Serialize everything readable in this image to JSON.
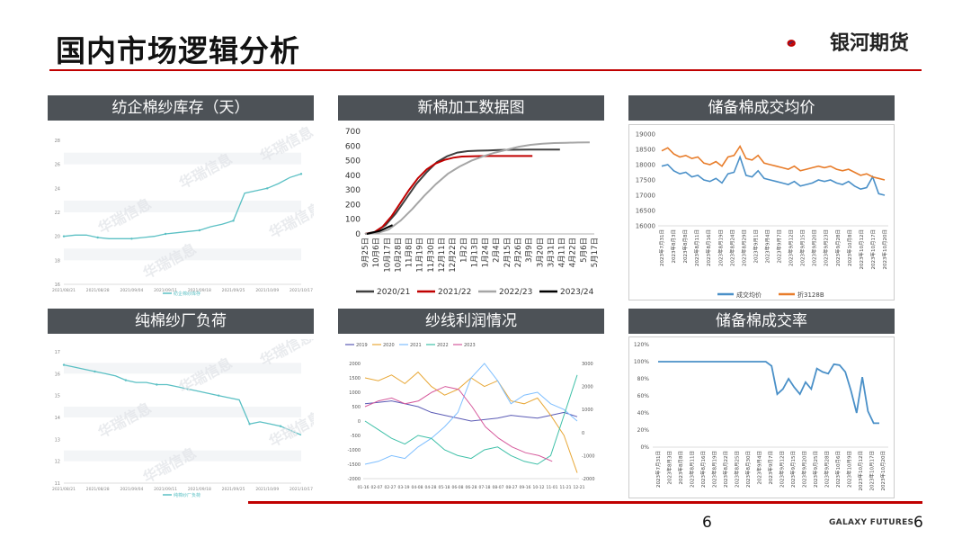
{
  "page": {
    "title": "国内市场逻辑分析",
    "page_number": "6",
    "page_number_right": "6",
    "footer_brand": "GALAXY FUTURES"
  },
  "logo": {
    "text": "银河期货"
  },
  "panels": {
    "yarn_inventory": {
      "title": "纺企棉纱库存（天）",
      "watermark": "华瑞信息"
    },
    "new_cotton": {
      "title": "新棉加工数据图"
    },
    "reserve_price": {
      "title": "储备棉成交均价"
    },
    "yarn_load": {
      "title": "纯棉纱厂负荷",
      "watermark": "华瑞信息"
    },
    "yarn_profit": {
      "title": "纱线利润情况"
    },
    "reserve_rate": {
      "title": "储备棉成交率"
    }
  },
  "chart_data": [
    {
      "id": "yarn_inventory",
      "type": "line",
      "title": "纺企棉纱库存（天）",
      "x_ticks": [
        "2021/08/21",
        "2021/08/28",
        "2021/09/04",
        "2021/09/11",
        "2021/09/18",
        "2021/09/25",
        "2021/10/09",
        "2021/10/17"
      ],
      "y_ticks": [
        16,
        18,
        20,
        22,
        24,
        26,
        28
      ],
      "ylim": [
        16,
        28
      ],
      "legend": [
        "纺企棉纱库存"
      ],
      "series": [
        {
          "name": "纺企棉纱库存",
          "color": "#5bc0c4",
          "values": [
            20.0,
            20.1,
            20.1,
            19.9,
            19.8,
            19.8,
            19.8,
            19.9,
            20.0,
            20.2,
            20.3,
            20.4,
            20.5,
            20.8,
            21.0,
            21.3,
            23.6,
            23.8,
            24.0,
            24.4,
            24.9,
            25.2
          ]
        }
      ]
    },
    {
      "id": "new_cotton",
      "type": "line",
      "title": "新棉加工数据图",
      "x_ticks": [
        "9月25日",
        "10月6日",
        "10月17日",
        "10月28日",
        "11月8日",
        "11月19日",
        "11月30日",
        "12月11日",
        "12月22日",
        "1月2日",
        "1月13日",
        "1月24日",
        "2月4日",
        "2月15日",
        "2月26日",
        "3月9日",
        "3月20日",
        "3月31日",
        "4月11日",
        "4月22日",
        "5月6日",
        "5月17日"
      ],
      "y_ticks": [
        0,
        100,
        200,
        300,
        400,
        500,
        600,
        700
      ],
      "ylim": [
        0,
        700
      ],
      "series": [
        {
          "name": "2020/21",
          "color": "#404040",
          "values": [
            0,
            15,
            60,
            140,
            240,
            340,
            420,
            490,
            530,
            555,
            565,
            568,
            570,
            572,
            574,
            575,
            576,
            576,
            576,
            576
          ]
        },
        {
          "name": "2021/22",
          "color": "#c00000",
          "values": [
            0,
            10,
            50,
            120,
            210,
            300,
            380,
            440,
            480,
            505,
            520,
            528,
            530,
            531,
            532,
            532,
            532,
            532,
            532,
            532
          ]
        },
        {
          "name": "2022/23",
          "color": "#a6a6a6",
          "values": [
            0,
            5,
            30,
            90,
            170,
            260,
            340,
            410,
            460,
            500,
            530,
            555,
            575,
            595,
            608,
            615,
            620,
            622,
            624,
            625
          ]
        },
        {
          "name": "2023/24",
          "color": "#000000",
          "values": [
            0,
            20,
            60
          ]
        }
      ]
    },
    {
      "id": "reserve_price",
      "type": "line",
      "title": "储备棉成交均价",
      "x_ticks": [
        "2023年7月31日",
        "2023年8月3日",
        "2023年8月8日",
        "2023年8月11日",
        "2023年8月16日",
        "2023年8月19日",
        "2023年8月24日",
        "2023年8月29日",
        "2023年9月1日",
        "2023年9月4日",
        "2023年9月7日",
        "2023年9月12日",
        "2023年9月15日",
        "2023年9月20日",
        "2023年9月23日",
        "2023年9月28日",
        "2023年10月8日",
        "2023年10月12日",
        "2023年10月17日",
        "2023年10月20日"
      ],
      "y_ticks": [
        16000,
        16500,
        17000,
        17500,
        18000,
        18500,
        19000
      ],
      "ylim": [
        16000,
        19000
      ],
      "legend": [
        "成交均价",
        "折3128B"
      ],
      "series": [
        {
          "name": "成交均价",
          "color": "#4a90c8",
          "values": [
            17950,
            18000,
            17800,
            17700,
            17750,
            17600,
            17650,
            17500,
            17450,
            17550,
            17400,
            17700,
            17750,
            18250,
            17650,
            17600,
            17800,
            17550,
            17500,
            17450,
            17400,
            17350,
            17450,
            17300,
            17350,
            17400,
            17500,
            17450,
            17500,
            17400,
            17350,
            17450,
            17300,
            17200,
            17250,
            17600,
            17050,
            17000
          ]
        },
        {
          "name": "折3128B",
          "color": "#e87d2b",
          "values": [
            18450,
            18550,
            18350,
            18250,
            18300,
            18200,
            18250,
            18050,
            18000,
            18100,
            17950,
            18250,
            18300,
            18600,
            18200,
            18150,
            18300,
            18050,
            18000,
            17950,
            17900,
            17850,
            17950,
            17800,
            17850,
            17900,
            17950,
            17900,
            17950,
            17850,
            17800,
            17850,
            17750,
            17650,
            17700,
            17600,
            17550,
            17500
          ]
        }
      ]
    },
    {
      "id": "yarn_load",
      "type": "line",
      "title": "纯棉纱厂负荷",
      "x_ticks": [
        "2021/08/21",
        "2021/08/28",
        "2021/09/04",
        "2021/09/11",
        "2021/09/18",
        "2021/09/25",
        "2021/10/09",
        "2021/10/17"
      ],
      "y_ticks": [
        11,
        12,
        13,
        14,
        15,
        16,
        17
      ],
      "ylim": [
        11,
        17
      ],
      "legend": [
        "纯棉纱厂负荷"
      ],
      "series": [
        {
          "name": "纯棉纱厂负荷",
          "color": "#5bc0c4",
          "values": [
            16.4,
            16.3,
            16.2,
            16.1,
            16.0,
            15.9,
            15.7,
            15.6,
            15.6,
            15.5,
            15.5,
            15.4,
            15.3,
            15.2,
            15.1,
            15.0,
            14.9,
            14.8,
            13.7,
            13.8,
            13.7,
            13.6,
            13.4,
            13.2
          ]
        }
      ]
    },
    {
      "id": "yarn_profit",
      "type": "line",
      "title": "纱线利润情况",
      "legend": [
        "2019",
        "2020",
        "2021",
        "2022",
        "2023"
      ],
      "y_left_ticks": [
        -2000,
        -1500,
        -1000,
        -500,
        0,
        500,
        1000,
        1500,
        2000
      ],
      "y_right_ticks": [
        -2000,
        -1000,
        0,
        1000,
        2000,
        3000
      ],
      "ylim": [
        -2000,
        2000
      ],
      "x_ticks": [
        "01-16",
        "02-07",
        "02-27",
        "03-19",
        "04-08",
        "04-28",
        "05-18",
        "06-08",
        "06-28",
        "07-18",
        "08-07",
        "08-27",
        "09-16",
        "10-12",
        "11-01",
        "11-21",
        "12-21"
      ],
      "series": [
        {
          "name": "2019",
          "color": "#5b5bb5",
          "values": [
            600,
            650,
            700,
            600,
            500,
            300,
            200,
            100,
            0,
            50,
            100,
            200,
            150,
            100,
            200,
            300,
            150
          ]
        },
        {
          "name": "2020",
          "color": "#e8a838",
          "values": [
            1500,
            1400,
            1600,
            1300,
            1700,
            1200,
            900,
            1100,
            1500,
            1200,
            1400,
            700,
            600,
            800,
            200,
            -500,
            -1800
          ]
        },
        {
          "name": "2021",
          "color": "#7fbfff",
          "values": [
            -1500,
            -1400,
            -1200,
            -1300,
            -900,
            -600,
            -200,
            300,
            1500,
            2000,
            1400,
            600,
            900,
            1000,
            600,
            400,
            0
          ]
        },
        {
          "name": "2022",
          "color": "#3fc0a8",
          "values": [
            0,
            -300,
            -600,
            -800,
            -500,
            -600,
            -1000,
            -1200,
            -1300,
            -1000,
            -900,
            -1200,
            -1400,
            -1500,
            -1200,
            200,
            1600
          ]
        },
        {
          "name": "2023",
          "color": "#d65a9c",
          "values": [
            500,
            700,
            800,
            600,
            700,
            1000,
            1200,
            1100,
            500,
            -200,
            -600,
            -900,
            -1100,
            -1200,
            -1400
          ]
        }
      ]
    },
    {
      "id": "reserve_rate",
      "type": "line",
      "title": "储备棉成交率",
      "x_ticks": [
        "2023年7月31日",
        "2023年8月3日",
        "2023年8月8日",
        "2023年8月11日",
        "2023年8月16日",
        "2023年8月19日",
        "2023年8月22日",
        "2023年8月25日",
        "2023年8月30日",
        "2023年9月4日",
        "2023年9月7日",
        "2023年9月12日",
        "2023年9月15日",
        "2023年9月20日",
        "2023年9月25日",
        "2023年9月28日",
        "2023年10月6日",
        "2023年10月9日",
        "2023年10月12日",
        "2023年10月17日",
        "2023年10月20日"
      ],
      "y_ticks": [
        "0%",
        "20%",
        "40%",
        "60%",
        "80%",
        "100%",
        "120%"
      ],
      "ylim": [
        0,
        120
      ],
      "series": [
        {
          "name": "成交率",
          "color": "#4a90c8",
          "values": [
            100,
            100,
            100,
            100,
            100,
            100,
            100,
            100,
            100,
            100,
            100,
            100,
            100,
            100,
            100,
            100,
            100,
            100,
            100,
            100,
            95,
            62,
            68,
            80,
            70,
            62,
            76,
            68,
            92,
            88,
            86,
            97,
            96,
            88,
            66,
            40,
            82,
            42,
            28,
            28
          ]
        }
      ]
    }
  ]
}
